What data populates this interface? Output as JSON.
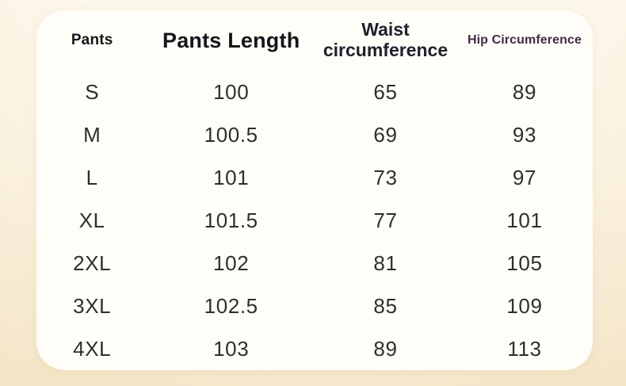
{
  "table": {
    "columns": [
      {
        "label": "Pants"
      },
      {
        "label": "Pants Length"
      },
      {
        "label": "Waist circumference"
      },
      {
        "label": "Hip Circumference"
      }
    ],
    "rows": [
      {
        "size": "S",
        "pants_length": "100",
        "waist": "65",
        "hip": "89"
      },
      {
        "size": "M",
        "pants_length": "100.5",
        "waist": "69",
        "hip": "93"
      },
      {
        "size": "L",
        "pants_length": "101",
        "waist": "73",
        "hip": "97"
      },
      {
        "size": "XL",
        "pants_length": "101.5",
        "waist": "77",
        "hip": "101"
      },
      {
        "size": "2XL",
        "pants_length": "102",
        "waist": "81",
        "hip": "105"
      },
      {
        "size": "3XL",
        "pants_length": "102.5",
        "waist": "85",
        "hip": "109"
      },
      {
        "size": "4XL",
        "pants_length": "103",
        "waist": "89",
        "hip": "113"
      }
    ]
  },
  "colors": {
    "page_background_edge": "#f2e3c2",
    "page_background_center": "#fdf8ed",
    "card_background": "#fffdf8",
    "header_text": "#16161a",
    "hip_header_text": "#432c44",
    "data_text": "#2e2e2e"
  }
}
